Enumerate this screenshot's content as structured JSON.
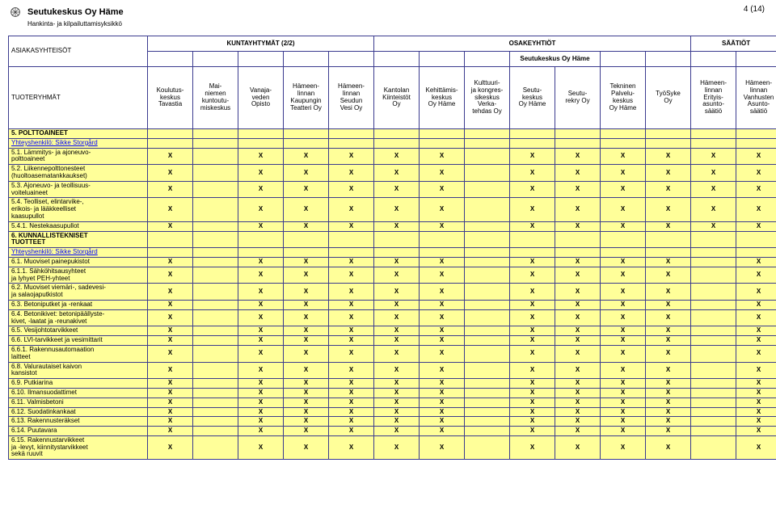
{
  "page_number": "4 (14)",
  "org": {
    "name": "Seutukeskus Oy Häme",
    "subtitle": "Hankinta- ja kilpailuttamisyksikkö"
  },
  "header": {
    "corner_top": "ASIAKASYHTEISÖT",
    "corner_bottom": "TUOTERYHMÄT",
    "groups": [
      {
        "label": "KUNTAYHTYMÄT (2/2)",
        "span": 5
      },
      {
        "label": "OSAKEYHTIÖT",
        "span": 7
      },
      {
        "label": "SÄÄTIÖT",
        "span": 2
      }
    ],
    "sub_header": {
      "label": "Seutukeskus Oy Häme",
      "start": 8,
      "span": 2
    },
    "columns": [
      "Koulutus-\nkeskus\nTavastia",
      "Mai-\nniemen\nkuntoutu-\nmiskeskus",
      "Vanaja-\nveden\nOpisto",
      "Hämeen-\nlinnan\nKaupungin\nTeatteri Oy",
      "Hämeen-\nlinnan\nSeudun\nVesi Oy",
      "Kantolan\nKiinteistöt\nOy",
      "Kehittämis-\nkeskus\nOy Häme",
      "Kulttuuri-\nja kongres-\nsikeskus\nVerka-\ntehdas Oy",
      "Seutu-\nkeskus\nOy Häme",
      "Seutu-\nrekry Oy",
      "Tekninen\nPalvelu-\nkeskus\nOy Häme",
      "TyöSyke\nOy",
      "Hämeen-\nlinnan\nErityis-\nasunto-\nsäätiö",
      "Hämeen-\nlinnan\nVanhusten\nAsunto-\nsäätiö"
    ]
  },
  "mark": "X",
  "pattern_std": [
    1,
    0,
    1,
    1,
    1,
    1,
    1,
    0,
    1,
    1,
    1,
    1,
    1,
    1
  ],
  "pattern_noc12": [
    1,
    0,
    1,
    1,
    1,
    1,
    1,
    0,
    1,
    1,
    1,
    1,
    0,
    1
  ],
  "rows": [
    {
      "type": "section",
      "label": "5. POLTTOAINEET"
    },
    {
      "type": "contact",
      "label": "Yhteyshenkilö: Sikke Storgård"
    },
    {
      "type": "data",
      "label": "5.1. Lämmitys- ja ajoneuvo-\npolttoaineet",
      "pattern": "std"
    },
    {
      "type": "data",
      "label": "5.2. Liikennepolttonesteet\n(huoltoasematankkaukset)",
      "pattern": "std"
    },
    {
      "type": "data",
      "label": "5.3. Ajoneuvo- ja teollisuus-\nvoiteluaineet",
      "pattern": "std"
    },
    {
      "type": "data",
      "label": "5.4. Teolliset, elintarvike-,\nerikois- ja lääkkeelliset\nkaasupullot",
      "pattern": "std"
    },
    {
      "type": "data",
      "label": "5.4.1. Nestekaasupullot",
      "pattern": "std"
    },
    {
      "type": "section",
      "label": "6. KUNNALLISTEKNISET\nTUOTTEET"
    },
    {
      "type": "contact",
      "label": "Yhteyshenkilö: Sikke Storgård"
    },
    {
      "type": "data",
      "label": "6.1. Muoviset painepukistot",
      "pattern": "noc12"
    },
    {
      "type": "data",
      "label": "6.1.1. Sähköhitsausyhteet\nja lyhyet PEH-yhteet",
      "pattern": "noc12"
    },
    {
      "type": "data",
      "label": "6.2. Muoviset viemäri-, sadevesi-\nja salaojaputkistot",
      "pattern": "noc12"
    },
    {
      "type": "data",
      "label": "6.3. Betoniputket ja -renkaat",
      "pattern": "noc12"
    },
    {
      "type": "data",
      "label": "6.4. Betonikivet: betonipäällyste-\nkivet, -laatat ja -reunakivet",
      "pattern": "noc12"
    },
    {
      "type": "data",
      "label": "6.5. Vesijohtotarvikkeet",
      "pattern": "noc12"
    },
    {
      "type": "data",
      "label": "6.6. LVI-tarvikkeet ja vesimittarit",
      "pattern": "noc12"
    },
    {
      "type": "data",
      "label": "6.6.1. Rakennusautomaation\nlaitteet",
      "pattern": "noc12"
    },
    {
      "type": "data",
      "label": "6.8. Valurautaiset kaivon\nkansistot",
      "pattern": "noc12"
    },
    {
      "type": "data",
      "label": "6.9. Putkiarina",
      "pattern": "noc12"
    },
    {
      "type": "data",
      "label": "6.10. Ilmansuodattimet",
      "pattern": "noc12"
    },
    {
      "type": "data",
      "label": "6.11. Valmisbetoni",
      "pattern": "noc12"
    },
    {
      "type": "data",
      "label": "6.12. Suodatinkankaat",
      "pattern": "noc12"
    },
    {
      "type": "data",
      "label": "6.13. Rakennusteräkset",
      "pattern": "noc12"
    },
    {
      "type": "data",
      "label": "6.14. Puutavara",
      "pattern": "noc12"
    },
    {
      "type": "data",
      "label": "6.15. Rakennustarvikkeet\nja -levyt, kiinnitystarvikkeet\nsekä ruuvit",
      "pattern": "noc12"
    }
  ],
  "colors": {
    "border": "#3b3b8f",
    "row_bg": "#ffff99",
    "link": "#0000ff"
  }
}
